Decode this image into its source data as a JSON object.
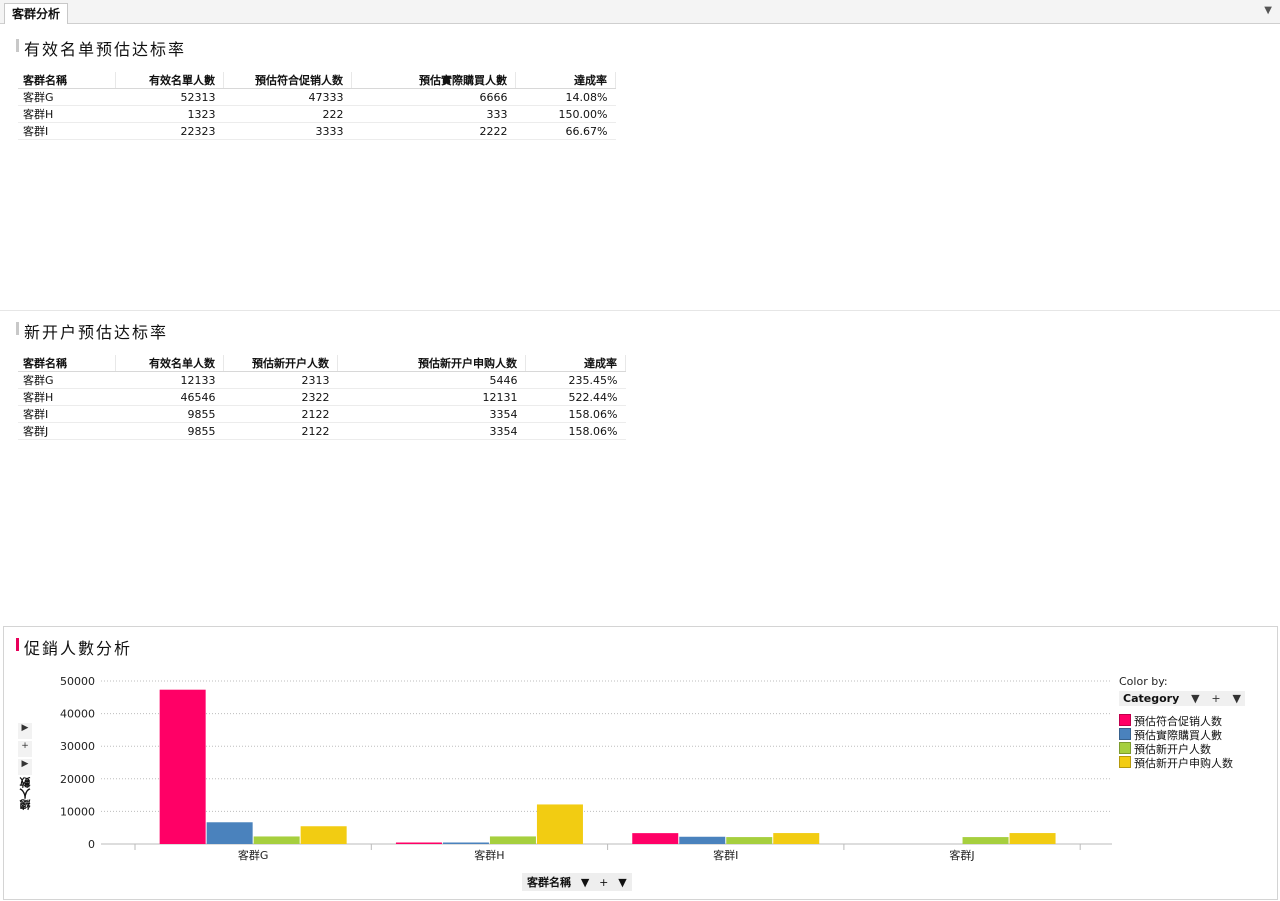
{
  "tab": {
    "label": "客群分析"
  },
  "panel1": {
    "title": "有效名单预估达标率",
    "headers": [
      "客群名稱",
      "有效名單人數",
      "預估符合促销人数",
      "預估實際購買人數",
      "達成率"
    ],
    "rows": [
      [
        "客群G",
        "52313",
        "47333",
        "6666",
        "14.08%"
      ],
      [
        "客群H",
        "1323",
        "222",
        "333",
        "150.00%"
      ],
      [
        "客群I",
        "22323",
        "3333",
        "2222",
        "66.67%"
      ]
    ]
  },
  "panel2": {
    "title": "新开户预估达标率",
    "headers": [
      "客群名稱",
      "有效名单人数",
      "預估新开户人数",
      "預估新开户申购人数",
      "達成率"
    ],
    "rows": [
      [
        "客群G",
        "12133",
        "2313",
        "5446",
        "235.45%"
      ],
      [
        "客群H",
        "46546",
        "2322",
        "12131",
        "522.44%"
      ],
      [
        "客群I",
        "9855",
        "2122",
        "3354",
        "158.06%"
      ],
      [
        "客群J",
        "9855",
        "2122",
        "3354",
        "158.06%"
      ]
    ]
  },
  "panel3": {
    "title": "促銷人數分析",
    "color_by_label": "Color by:",
    "color_by_value": "Category",
    "x_selector": "客群名稱",
    "y_axis_label": "總人數"
  },
  "chart_data": {
    "type": "bar",
    "categories": [
      "客群G",
      "客群H",
      "客群I",
      "客群J"
    ],
    "series": [
      {
        "name": "預估符合促销人数",
        "color": "#ff0066",
        "values": [
          47333,
          222,
          3333,
          0
        ]
      },
      {
        "name": "預估實際購買人數",
        "color": "#4a82bd",
        "values": [
          6666,
          333,
          2222,
          0
        ]
      },
      {
        "name": "預估新开户人数",
        "color": "#a6cf3e",
        "values": [
          2313,
          2322,
          2122,
          2122
        ]
      },
      {
        "name": "預估新开户申购人数",
        "color": "#f2cc12",
        "values": [
          5446,
          12131,
          3354,
          3354
        ]
      }
    ],
    "yticks": [
      0,
      10000,
      20000,
      30000,
      40000,
      50000
    ],
    "ylim": [
      0,
      50000
    ],
    "xlabel": "客群名稱",
    "ylabel": "總人數",
    "grid": true,
    "legend_position": "right"
  }
}
